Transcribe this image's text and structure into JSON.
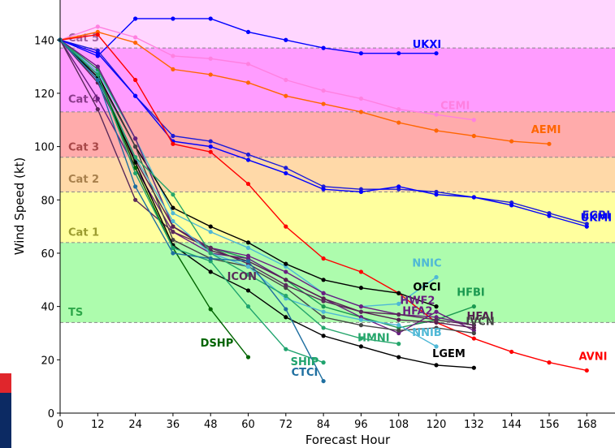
{
  "chart_data": {
    "type": "line",
    "xlabel": "Forecast Hour",
    "ylabel": "Wind Speed (kt)",
    "xlim": [
      0,
      177
    ],
    "ylim": [
      0,
      155
    ],
    "x_ticks": [
      0,
      12,
      24,
      36,
      48,
      60,
      72,
      84,
      96,
      108,
      120,
      132,
      144,
      156,
      168
    ],
    "y_ticks": [
      0,
      20,
      40,
      60,
      80,
      100,
      120,
      140
    ],
    "bands": [
      {
        "label": "TS",
        "from": 34,
        "to": 64,
        "color": "#adfcad",
        "label_color": "#2ea84a",
        "label_y": 38
      },
      {
        "label": "Cat 1",
        "from": 64,
        "to": 83,
        "color": "#ffff9e",
        "label_color": "#9c9c30",
        "label_y": 68
      },
      {
        "label": "Cat 2",
        "from": 83,
        "to": 96,
        "color": "#ffd9a8",
        "label_color": "#a8804c",
        "label_y": 88
      },
      {
        "label": "Cat 3",
        "from": 96,
        "to": 113,
        "color": "#ffabab",
        "label_color": "#a84848",
        "label_y": 100
      },
      {
        "label": "Cat 4",
        "from": 113,
        "to": 137,
        "color": "#ff9cff",
        "label_color": "#8a3a8a",
        "label_y": 118
      },
      {
        "label": "Cat 5",
        "from": 137,
        "to": 160,
        "color": "#ffd6ff",
        "label_color": "#a060a0",
        "label_y": 141
      }
    ],
    "series": [
      {
        "name": "UKXI",
        "color": "#0000ff",
        "x": [
          0,
          12,
          24,
          36,
          48,
          60,
          72,
          84,
          96,
          108,
          120
        ],
        "y": [
          140,
          134,
          148,
          148,
          148,
          143,
          140,
          137,
          135,
          135,
          135
        ],
        "label_x": 117,
        "label_y": 137
      },
      {
        "name": "CEMI",
        "color": "#ff80e0",
        "x": [
          0,
          12,
          24,
          36,
          48,
          60,
          72,
          84,
          96,
          108,
          120,
          132
        ],
        "y": [
          140,
          145,
          141,
          134,
          133,
          131,
          125,
          121,
          118,
          114,
          112,
          110
        ],
        "label_x": 126,
        "label_y": 114
      },
      {
        "name": "AEMI",
        "color": "#ff6600",
        "x": [
          0,
          12,
          24,
          36,
          48,
          60,
          72,
          84,
          96,
          108,
          120,
          132,
          144,
          156
        ],
        "y": [
          140,
          143,
          139,
          129,
          127,
          124,
          119,
          116,
          113,
          109,
          106,
          104,
          102,
          101
        ],
        "label_x": 155,
        "label_y": 105
      },
      {
        "name": "EGRI",
        "color": "#1c1cd8",
        "x": [
          0,
          12,
          24,
          36,
          48,
          60,
          72,
          84,
          96,
          108,
          120,
          132,
          144,
          156,
          168
        ],
        "y": [
          140,
          136,
          119,
          104,
          102,
          97,
          92,
          85,
          84,
          84,
          83,
          81,
          79,
          75,
          71
        ],
        "label_x": 171,
        "label_y": 73
      },
      {
        "name": "UKMI",
        "color": "#0000ff",
        "x": [
          0,
          12,
          24,
          36,
          48,
          60,
          72,
          84,
          96,
          108,
          120,
          132,
          144,
          156,
          168
        ],
        "y": [
          140,
          135,
          119,
          102,
          100,
          95,
          90,
          84,
          83,
          85,
          82,
          81,
          78,
          74,
          70
        ],
        "label_x": 171,
        "label_y": 72
      },
      {
        "name": "AVNI",
        "color": "#ff0000",
        "x": [
          0,
          12,
          24,
          36,
          48,
          60,
          72,
          84,
          96,
          108,
          120,
          132,
          144,
          156,
          168
        ],
        "y": [
          140,
          142,
          125,
          101,
          98,
          86,
          70,
          58,
          53,
          45,
          34,
          28,
          23,
          19,
          16
        ],
        "label_x": 170,
        "label_y": 20
      },
      {
        "name": "NNIC",
        "color": "#4fb8d6",
        "x": [
          0,
          12,
          24,
          36,
          48,
          60,
          72,
          84,
          96,
          108,
          120
        ],
        "y": [
          140,
          128,
          103,
          75,
          68,
          62,
          55,
          45,
          40,
          41,
          51
        ],
        "label_x": 117,
        "label_y": 55
      },
      {
        "name": "OFCI",
        "color": "#000000",
        "x": [
          0,
          12,
          24,
          36,
          48,
          60,
          72,
          84,
          96,
          108,
          120
        ],
        "y": [
          140,
          127,
          100,
          77,
          70,
          64,
          56,
          50,
          47,
          45,
          40
        ],
        "label_x": 117,
        "label_y": 46
      },
      {
        "name": "HFBI",
        "color": "#1a9950",
        "x": [
          0,
          12,
          24,
          36,
          48,
          60,
          72,
          84,
          96,
          108,
          120,
          132
        ],
        "y": [
          140,
          129,
          103,
          70,
          62,
          58,
          50,
          40,
          36,
          32,
          35,
          40
        ],
        "label_x": 131,
        "label_y": 44
      },
      {
        "name": "HWF2",
        "color": "#6a1e80",
        "x": [
          0,
          12,
          24,
          36,
          48,
          60,
          72,
          84,
          96,
          108,
          120,
          132
        ],
        "y": [
          140,
          130,
          103,
          70,
          62,
          59,
          53,
          45,
          40,
          37,
          36,
          33
        ],
        "label_x": 114,
        "label_y": 41
      },
      {
        "name": "HFA2",
        "color": "#6a1e80",
        "x": [
          0,
          12,
          24,
          36,
          48,
          60,
          72,
          84,
          96,
          108,
          120,
          132
        ],
        "y": [
          140,
          118,
          92,
          68,
          60,
          58,
          50,
          43,
          36,
          30,
          38,
          31
        ],
        "label_x": 114,
        "label_y": 37
      },
      {
        "name": "HFAI",
        "color": "#55204f",
        "x": [
          0,
          12,
          24,
          36,
          48,
          60,
          72,
          84,
          96,
          108,
          120,
          132
        ],
        "y": [
          140,
          124,
          95,
          70,
          61,
          57,
          50,
          43,
          38,
          35,
          34,
          32
        ],
        "label_x": 134,
        "label_y": 35
      },
      {
        "name": "IVCN",
        "color": "#444444",
        "x": [
          0,
          12,
          24,
          36,
          48,
          60,
          72,
          84,
          96,
          108,
          120,
          132
        ],
        "y": [
          140,
          126,
          100,
          65,
          58,
          55,
          47,
          36,
          33,
          31,
          32,
          30
        ],
        "label_x": 134,
        "label_y": 33
      },
      {
        "name": "ICON",
        "color": "#5a2a5a",
        "x": [
          0,
          12,
          24,
          36,
          48,
          60,
          72,
          84,
          96,
          108,
          120,
          132
        ],
        "y": [
          140,
          114,
          80,
          68,
          62,
          56,
          48,
          42,
          38,
          37,
          35,
          33
        ],
        "label_x": 58,
        "label_y": 50
      },
      {
        "name": "NNIB",
        "color": "#4fb8d6",
        "x": [
          0,
          12,
          24,
          36,
          48,
          60,
          72,
          84,
          96,
          108,
          120
        ],
        "y": [
          140,
          125,
          96,
          72,
          60,
          55,
          43,
          38,
          35,
          33,
          25
        ],
        "label_x": 117,
        "label_y": 29
      },
      {
        "name": "HMNI",
        "color": "#26a66c",
        "x": [
          0,
          12,
          24,
          36,
          48,
          60,
          72,
          84,
          96,
          108
        ],
        "y": [
          140,
          126,
          96,
          82,
          60,
          52,
          44,
          32,
          28,
          26
        ],
        "label_x": 100,
        "label_y": 27
      },
      {
        "name": "LGEM",
        "color": "#000000",
        "x": [
          0,
          12,
          24,
          36,
          48,
          60,
          72,
          84,
          96,
          108,
          120,
          132
        ],
        "y": [
          140,
          126,
          94,
          63,
          53,
          46,
          36,
          29,
          25,
          21,
          18,
          17
        ],
        "label_x": 124,
        "label_y": 21
      },
      {
        "name": "DSHP",
        "color": "#006400",
        "x": [
          0,
          12,
          24,
          36,
          48,
          60
        ],
        "y": [
          140,
          127,
          92,
          62,
          39,
          21
        ],
        "label_x": 50,
        "label_y": 25
      },
      {
        "name": "SHIP",
        "color": "#1fa36e",
        "x": [
          0,
          12,
          24,
          36,
          48,
          60,
          72,
          84
        ],
        "y": [
          140,
          127,
          90,
          62,
          57,
          40,
          24,
          19
        ],
        "label_x": 78,
        "label_y": 18
      },
      {
        "name": "CTCI",
        "color": "#1f6fa0",
        "x": [
          0,
          12,
          24,
          36,
          48,
          60,
          72,
          84
        ],
        "y": [
          140,
          125,
          85,
          60,
          58,
          57,
          39,
          12
        ],
        "label_x": 78,
        "label_y": 14
      }
    ]
  }
}
